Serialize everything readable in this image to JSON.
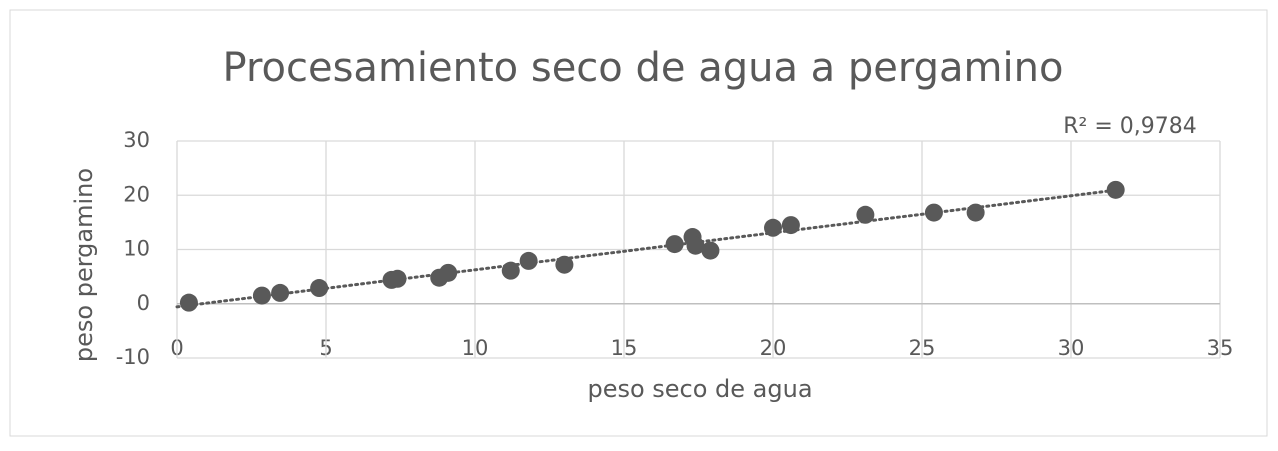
{
  "chart_data": {
    "type": "scatter",
    "title": "Procesamiento seco de agua a pergamino",
    "x_label": "peso seco de agua",
    "y_label": "peso pergamino",
    "annotation": "R² = 0,9784",
    "series": [
      {
        "color": "#595959",
        "x": [
          0.4,
          2.85,
          3.46,
          4.77,
          7.2,
          7.4,
          8.8,
          9.1,
          11.2,
          11.8,
          13.0,
          16.7,
          17.3,
          17.4,
          17.9,
          20.0,
          20.6,
          23.1,
          25.4,
          26.8,
          31.5
        ],
        "values": [
          0.2,
          1.5,
          2.0,
          2.9,
          4.4,
          4.6,
          4.8,
          5.7,
          6.1,
          7.9,
          7.2,
          11.0,
          12.3,
          10.7,
          9.8,
          14.0,
          14.5,
          16.4,
          16.8,
          16.8,
          21.0
        ]
      }
    ],
    "trendline": "linear",
    "xlim": [
      0,
      35
    ],
    "xticks": [
      0,
      5,
      10,
      15,
      20,
      25,
      30,
      35
    ],
    "ylim": [
      -10,
      30
    ],
    "yticks": [
      -10,
      0,
      10,
      20,
      30
    ],
    "grid": true
  }
}
